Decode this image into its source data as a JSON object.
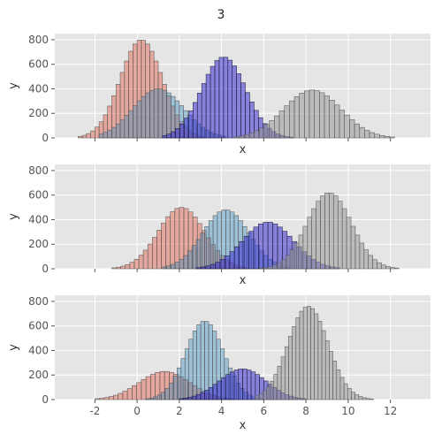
{
  "figure": {
    "title": "3"
  },
  "style": {
    "panel_bg": "#e5e5e5",
    "grid": "#ffffff",
    "tick_text": "#555555",
    "label_text": "#333333"
  },
  "chart_data": [
    {
      "type": "histogram",
      "xlabel": "x",
      "ylabel": "y",
      "xlim": [
        -3.9,
        13.9
      ],
      "ylim": [
        0,
        850
      ],
      "xticks": [],
      "yticks": [
        0,
        200,
        400,
        600,
        800
      ],
      "grid": true,
      "series": [
        {
          "color": "#E24A33",
          "alpha": 0.4,
          "edge": "#555555",
          "mean": 0.2,
          "std": 1.0,
          "peak": 800,
          "x0": -2.8,
          "x1": 3.2,
          "n": 30
        },
        {
          "color": "#348ABD",
          "alpha": 0.4,
          "edge": "#555555",
          "mean": 1.0,
          "std": 1.2,
          "peak": 400,
          "x0": -1.8,
          "x1": 4.2,
          "n": 30
        },
        {
          "color": "#3b2fd1",
          "alpha": 0.55,
          "edge": "#1a1a3a",
          "mean": 4.1,
          "std": 1.05,
          "peak": 660,
          "x0": 1.2,
          "x1": 7.4,
          "n": 30
        },
        {
          "color": "#999999",
          "alpha": 0.55,
          "edge": "#555555",
          "mean": 8.3,
          "std": 1.35,
          "peak": 390,
          "x0": 4.6,
          "x1": 12.2,
          "n": 32
        }
      ]
    },
    {
      "type": "histogram",
      "xlabel": "x",
      "ylabel": "y",
      "xlim": [
        -3.9,
        13.9
      ],
      "ylim": [
        0,
        850
      ],
      "xticks": [],
      "yticks": [
        0,
        200,
        400,
        600,
        800
      ],
      "grid": true,
      "series": [
        {
          "color": "#E24A33",
          "alpha": 0.4,
          "edge": "#555555",
          "mean": 2.1,
          "std": 1.1,
          "peak": 500,
          "x0": -1.2,
          "x1": 5.2,
          "n": 30
        },
        {
          "color": "#348ABD",
          "alpha": 0.4,
          "edge": "#555555",
          "mean": 4.2,
          "std": 1.1,
          "peak": 480,
          "x0": 1.2,
          "x1": 7.2,
          "n": 30
        },
        {
          "color": "#3b2fd1",
          "alpha": 0.55,
          "edge": "#1a1a3a",
          "mean": 6.2,
          "std": 1.2,
          "peak": 380,
          "x0": 2.8,
          "x1": 9.6,
          "n": 30
        },
        {
          "color": "#999999",
          "alpha": 0.55,
          "edge": "#555555",
          "mean": 9.1,
          "std": 1.05,
          "peak": 620,
          "x0": 5.8,
          "x1": 12.4,
          "n": 32
        }
      ]
    },
    {
      "type": "histogram",
      "xlabel": "x",
      "ylabel": "y",
      "xlim": [
        -3.9,
        13.9
      ],
      "ylim": [
        0,
        850
      ],
      "xticks": [
        -2,
        0,
        2,
        4,
        6,
        8,
        10,
        12
      ],
      "yticks": [
        0,
        200,
        400,
        600,
        800
      ],
      "grid": true,
      "series": [
        {
          "color": "#E24A33",
          "alpha": 0.4,
          "edge": "#555555",
          "mean": 1.3,
          "std": 1.2,
          "peak": 230,
          "x0": -2.0,
          "x1": 4.6,
          "n": 30
        },
        {
          "color": "#348ABD",
          "alpha": 0.4,
          "edge": "#555555",
          "mean": 3.2,
          "std": 0.9,
          "peak": 640,
          "x0": 0.4,
          "x1": 6.0,
          "n": 30
        },
        {
          "color": "#3b2fd1",
          "alpha": 0.55,
          "edge": "#1a1a3a",
          "mean": 5.0,
          "std": 1.1,
          "peak": 250,
          "x0": 2.0,
          "x1": 8.0,
          "n": 30
        },
        {
          "color": "#999999",
          "alpha": 0.55,
          "edge": "#555555",
          "mean": 8.1,
          "std": 0.95,
          "peak": 760,
          "x0": 5.6,
          "x1": 11.2,
          "n": 32
        }
      ]
    }
  ]
}
